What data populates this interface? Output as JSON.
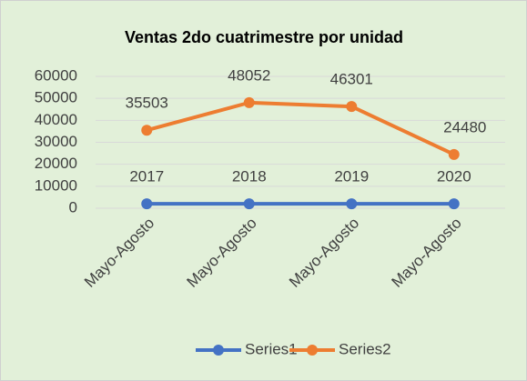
{
  "chart_data": {
    "type": "line",
    "title": "Ventas 2do cuatrimestre por unidad",
    "categories": [
      "Mayo-Agosto",
      "Mayo-Agosto",
      "Mayo-Agosto",
      "Mayo-Agosto"
    ],
    "series": [
      {
        "name": "Series1",
        "color": "#4472c4",
        "values": [
          2017,
          2018,
          2019,
          2020
        ]
      },
      {
        "name": "Series2",
        "color": "#ed7d31",
        "values": [
          35503,
          48052,
          46301,
          24480
        ]
      }
    ],
    "ylim": [
      0,
      60000
    ],
    "yticks": [
      0,
      10000,
      20000,
      30000,
      40000,
      50000,
      60000
    ],
    "grid": true,
    "legend": "bottom"
  }
}
